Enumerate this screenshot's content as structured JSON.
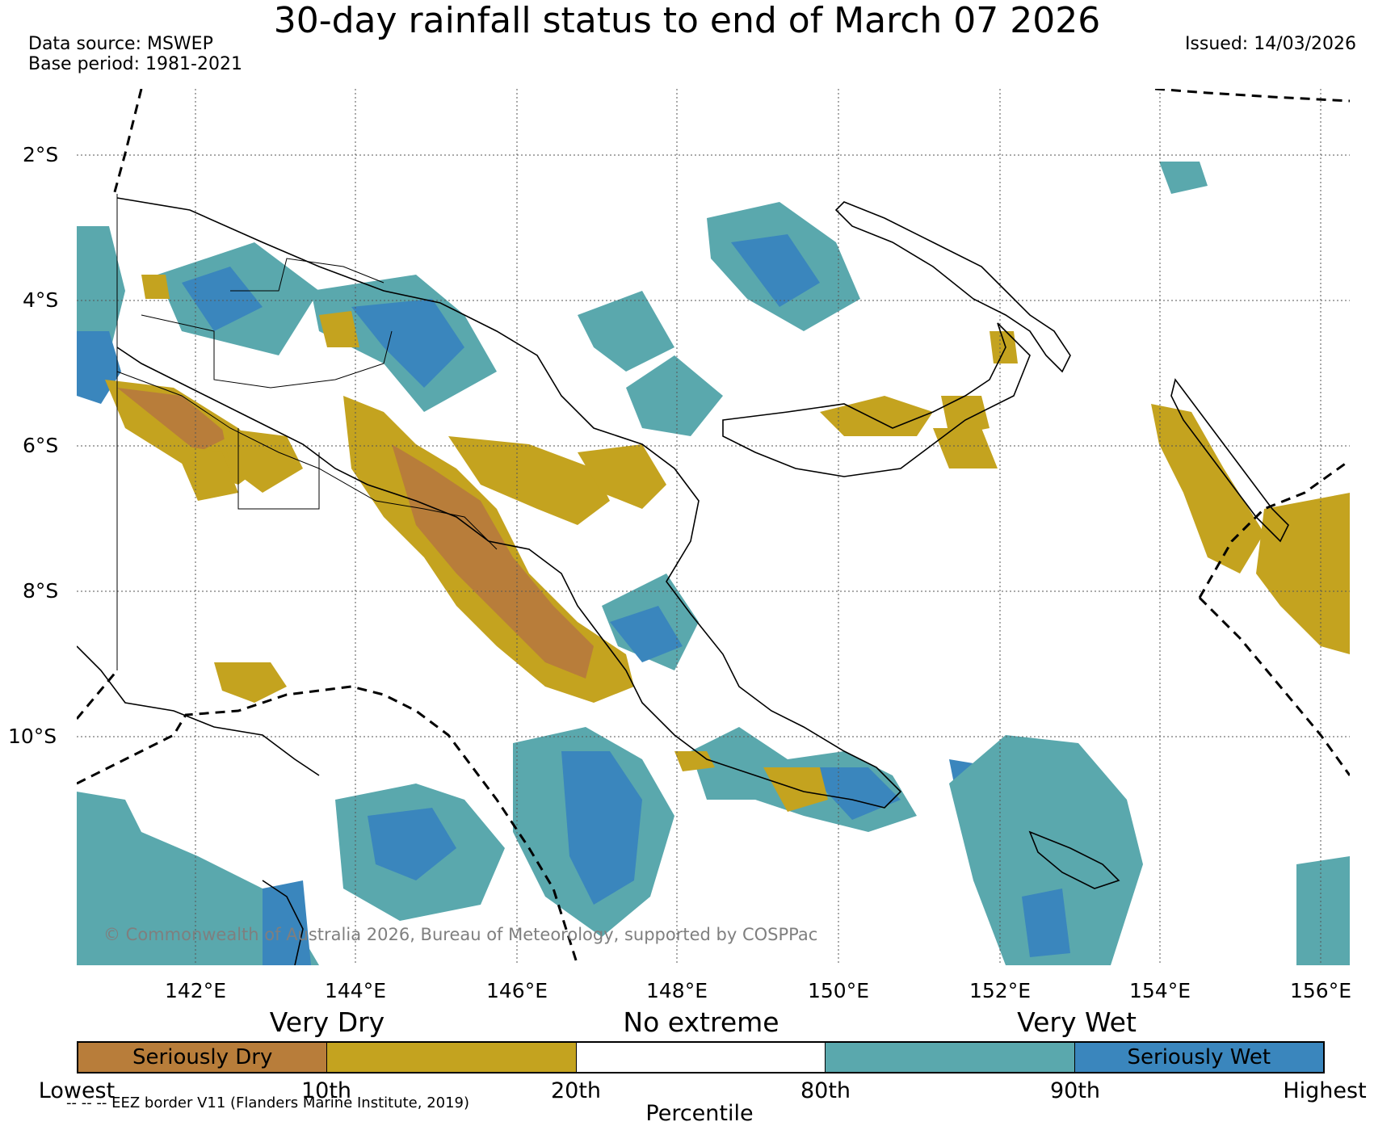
{
  "title": "30-day rainfall status to end of March 07 2026",
  "data_source": "Data source: MSWEP",
  "base_period": "Base period: 1981-2021",
  "issued": "Issued: 14/03/2026",
  "lat_labels": [
    "2°S",
    "4°S",
    "6°S",
    "8°S",
    "10°S"
  ],
  "lon_labels": [
    "142°E",
    "144°E",
    "146°E",
    "148°E",
    "150°E",
    "152°E",
    "154°E",
    "156°E"
  ],
  "copyright": "© Commonwealth of Australia 2026, Bureau of Meteorology, supported by COSPPac",
  "legend": {
    "headers": [
      "Very Dry",
      "No extreme",
      "Very Wet"
    ],
    "segments": [
      {
        "label": "Seriously Dry",
        "color": "#b87d3a"
      },
      {
        "label": "",
        "color": "#c4a31f"
      },
      {
        "label": "",
        "color": "#ffffff"
      },
      {
        "label": "",
        "color": "#5aa8ad"
      },
      {
        "label": "Seriously Wet",
        "color": "#3a86bd"
      }
    ],
    "ticks": [
      "Lowest",
      "10th",
      "20th",
      "80th",
      "90th",
      "Highest"
    ],
    "axis_label": "Percentile"
  },
  "eez_note": "-- -- -- EEZ border V11 (Flanders Marine Institute, 2019)"
}
